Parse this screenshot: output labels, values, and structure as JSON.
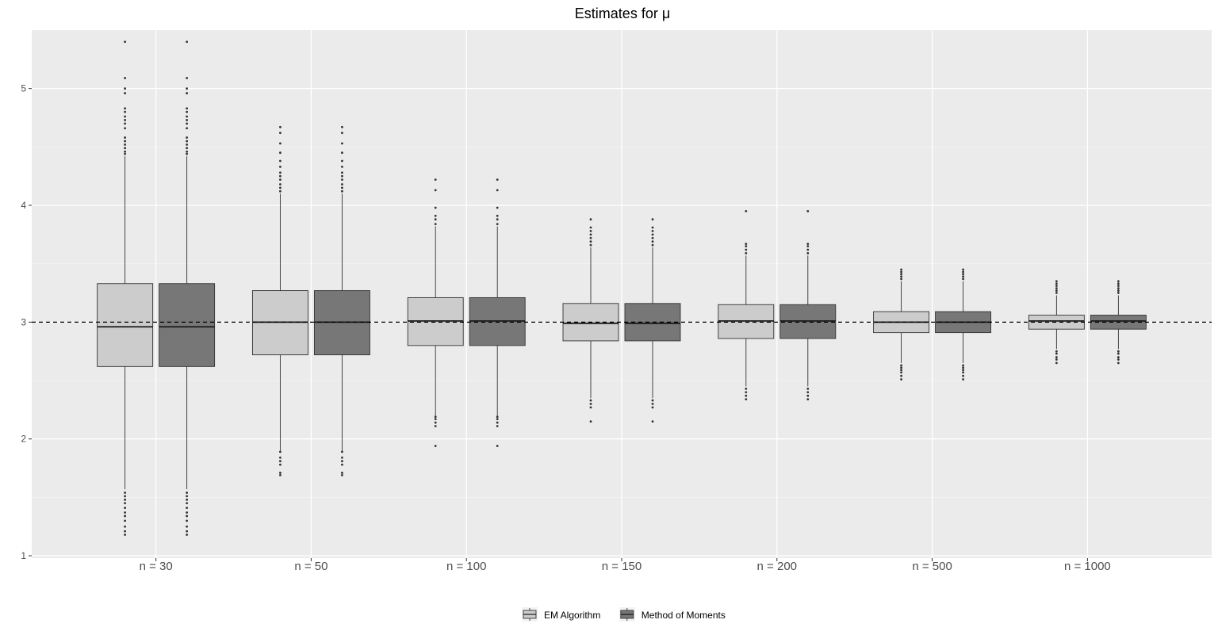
{
  "chart_data": {
    "type": "boxplot",
    "title": "Estimates for μ",
    "xlabel": "",
    "ylabel": "",
    "ylim": [
      0.98,
      5.5
    ],
    "yticks": [
      1,
      2,
      3,
      4,
      5
    ],
    "reference_line": {
      "y": 3,
      "style": "dashed"
    },
    "grid": true,
    "legend_position": "bottom",
    "categories": [
      "n = 30",
      "n = 50",
      "n = 100",
      "n = 150",
      "n = 200",
      "n = 500",
      "n = 1000"
    ],
    "series": [
      {
        "name": "EM Algorithm",
        "color": "#cccccc",
        "boxes": [
          {
            "min": 1.57,
            "q1": 2.62,
            "median": 2.96,
            "q3": 3.33,
            "max": 4.42,
            "outliers": [
              1.18,
              1.21,
              1.25,
              1.3,
              1.34,
              1.37,
              1.41,
              1.45,
              1.48,
              1.51,
              1.54,
              4.44,
              4.46,
              4.49,
              4.52,
              4.55,
              4.58,
              4.66,
              4.7,
              4.73,
              4.76,
              4.8,
              4.83,
              4.96,
              5.0,
              5.09,
              5.4
            ]
          },
          {
            "min": 1.9,
            "q1": 2.72,
            "median": 3.0,
            "q3": 3.27,
            "max": 4.1,
            "outliers": [
              1.69,
              1.71,
              1.78,
              1.81,
              1.84,
              1.89,
              4.12,
              4.15,
              4.18,
              4.22,
              4.25,
              4.28,
              4.33,
              4.38,
              4.45,
              4.53,
              4.62,
              4.67
            ]
          },
          {
            "min": 2.2,
            "q1": 2.8,
            "median": 3.01,
            "q3": 3.21,
            "max": 3.82,
            "outliers": [
              1.94,
              2.11,
              2.14,
              2.17,
              2.19,
              3.84,
              3.88,
              3.91,
              3.98,
              4.13,
              4.22
            ]
          },
          {
            "min": 2.35,
            "q1": 2.84,
            "median": 2.99,
            "q3": 3.16,
            "max": 3.64,
            "outliers": [
              2.15,
              2.27,
              2.3,
              2.33,
              3.66,
              3.69,
              3.72,
              3.75,
              3.78,
              3.81,
              3.88
            ]
          },
          {
            "min": 2.45,
            "q1": 2.86,
            "median": 3.01,
            "q3": 3.15,
            "max": 3.57,
            "outliers": [
              2.34,
              2.37,
              2.4,
              2.43,
              3.59,
              3.62,
              3.65,
              3.67,
              3.95
            ]
          },
          {
            "min": 2.65,
            "q1": 2.91,
            "median": 3.0,
            "q3": 3.09,
            "max": 3.35,
            "outliers": [
              2.51,
              2.54,
              2.57,
              2.59,
              2.61,
              2.63,
              3.37,
              3.39,
              3.41,
              3.43,
              3.45
            ]
          },
          {
            "min": 2.77,
            "q1": 2.94,
            "median": 3.01,
            "q3": 3.06,
            "max": 3.23,
            "outliers": [
              2.65,
              2.68,
              2.7,
              2.73,
              2.75,
              3.25,
              3.27,
              3.29,
              3.31,
              3.33,
              3.35
            ]
          }
        ]
      },
      {
        "name": "Method of Moments",
        "color": "#777777",
        "boxes": [
          {
            "min": 1.57,
            "q1": 2.62,
            "median": 2.96,
            "q3": 3.33,
            "max": 4.42,
            "outliers": [
              1.18,
              1.21,
              1.25,
              1.3,
              1.34,
              1.37,
              1.41,
              1.45,
              1.48,
              1.51,
              1.54,
              4.44,
              4.46,
              4.49,
              4.52,
              4.55,
              4.58,
              4.66,
              4.7,
              4.73,
              4.76,
              4.8,
              4.83,
              4.96,
              5.0,
              5.09,
              5.4
            ]
          },
          {
            "min": 1.9,
            "q1": 2.72,
            "median": 3.0,
            "q3": 3.27,
            "max": 4.1,
            "outliers": [
              1.69,
              1.71,
              1.78,
              1.81,
              1.84,
              1.89,
              4.12,
              4.15,
              4.18,
              4.22,
              4.25,
              4.28,
              4.33,
              4.38,
              4.45,
              4.53,
              4.62,
              4.67
            ]
          },
          {
            "min": 2.2,
            "q1": 2.8,
            "median": 3.01,
            "q3": 3.21,
            "max": 3.82,
            "outliers": [
              1.94,
              2.11,
              2.14,
              2.17,
              2.19,
              3.84,
              3.88,
              3.91,
              3.98,
              4.13,
              4.22
            ]
          },
          {
            "min": 2.35,
            "q1": 2.84,
            "median": 2.99,
            "q3": 3.16,
            "max": 3.64,
            "outliers": [
              2.15,
              2.27,
              2.3,
              2.33,
              3.66,
              3.69,
              3.72,
              3.75,
              3.78,
              3.81,
              3.88
            ]
          },
          {
            "min": 2.45,
            "q1": 2.86,
            "median": 3.01,
            "q3": 3.15,
            "max": 3.57,
            "outliers": [
              2.34,
              2.37,
              2.4,
              2.43,
              3.59,
              3.62,
              3.65,
              3.67,
              3.95
            ]
          },
          {
            "min": 2.65,
            "q1": 2.91,
            "median": 3.0,
            "q3": 3.09,
            "max": 3.35,
            "outliers": [
              2.51,
              2.54,
              2.57,
              2.59,
              2.61,
              2.63,
              3.37,
              3.39,
              3.41,
              3.43,
              3.45
            ]
          },
          {
            "min": 2.77,
            "q1": 2.94,
            "median": 3.01,
            "q3": 3.06,
            "max": 3.23,
            "outliers": [
              2.65,
              2.68,
              2.7,
              2.73,
              2.75,
              3.25,
              3.27,
              3.29,
              3.31,
              3.33,
              3.35
            ]
          }
        ]
      }
    ]
  }
}
